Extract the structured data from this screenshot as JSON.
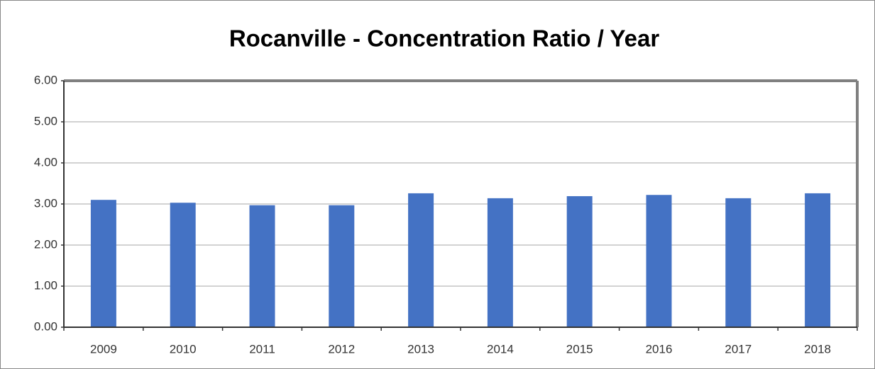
{
  "chart_data": {
    "type": "bar",
    "title": "Rocanville - Concentration Ratio / Year",
    "categories": [
      "2009",
      "2010",
      "2011",
      "2012",
      "2013",
      "2014",
      "2015",
      "2016",
      "2017",
      "2018"
    ],
    "values": [
      3.1,
      3.03,
      2.97,
      2.97,
      3.26,
      3.14,
      3.19,
      3.22,
      3.14,
      3.26
    ],
    "color": "#4472c4",
    "ylim": [
      0,
      6
    ],
    "yticks": [
      {
        "value": 0,
        "label": "0.00"
      },
      {
        "value": 1,
        "label": "1.00"
      },
      {
        "value": 2,
        "label": "2.00"
      },
      {
        "value": 3,
        "label": "3.00"
      },
      {
        "value": 4,
        "label": "4.00"
      },
      {
        "value": 5,
        "label": "5.00"
      },
      {
        "value": 6,
        "label": "6.00"
      }
    ],
    "grid": true
  }
}
